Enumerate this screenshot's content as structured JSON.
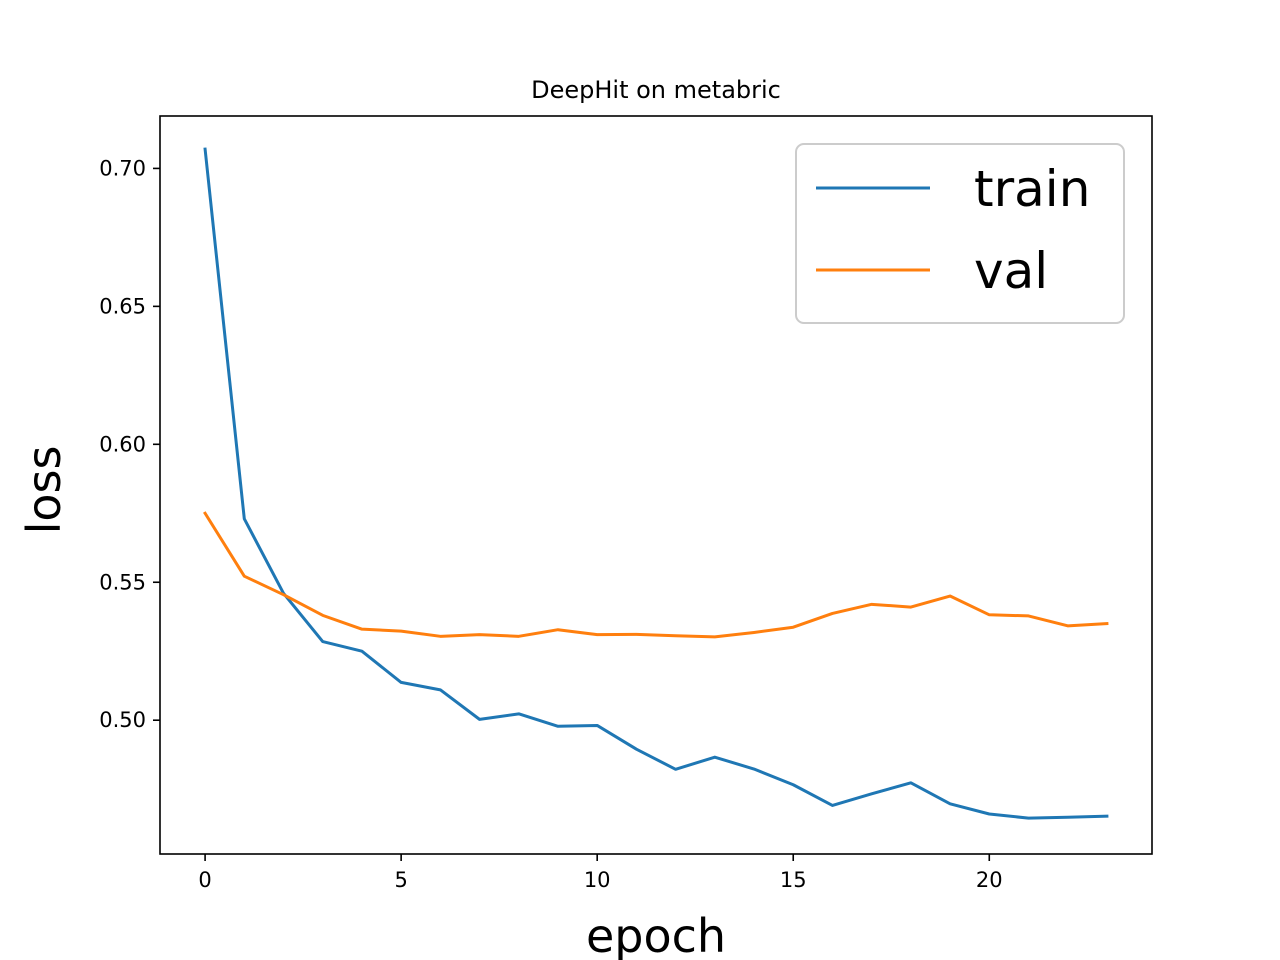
{
  "chart_data": {
    "type": "line",
    "title": "DeepHit on metabric",
    "xlabel": "epoch",
    "ylabel": "loss",
    "xlim": [
      -1.15,
      24.15
    ],
    "ylim": [
      0.4515,
      0.719
    ],
    "xticks": [
      0,
      5,
      10,
      15,
      20
    ],
    "xtick_labels": [
      "0",
      "5",
      "10",
      "15",
      "20"
    ],
    "yticks": [
      0.5,
      0.55,
      0.6,
      0.65,
      0.7
    ],
    "ytick_labels": [
      "0.50",
      "0.55",
      "0.60",
      "0.65",
      "0.70"
    ],
    "grid": false,
    "legend_position": "top-right",
    "x": [
      0,
      1,
      2,
      3,
      4,
      5,
      6,
      7,
      8,
      9,
      10,
      11,
      12,
      13,
      14,
      15,
      16,
      17,
      18,
      19,
      20,
      21,
      22,
      23
    ],
    "series": [
      {
        "name": "train",
        "color": "#1f77b4",
        "values": [
          0.707,
          0.573,
          0.546,
          0.5285,
          0.525,
          0.5137,
          0.511,
          0.5003,
          0.5023,
          0.4978,
          0.4981,
          0.4895,
          0.4822,
          0.4866,
          0.4823,
          0.4766,
          0.4691,
          0.4733,
          0.4773,
          0.4697,
          0.466,
          0.4645,
          0.4648,
          0.4652
        ]
      },
      {
        "name": "val",
        "color": "#ff7f0e",
        "values": [
          0.575,
          0.5522,
          0.5455,
          0.538,
          0.533,
          0.5323,
          0.5304,
          0.531,
          0.5304,
          0.5328,
          0.531,
          0.5311,
          0.5306,
          0.5302,
          0.5318,
          0.5337,
          0.5387,
          0.542,
          0.541,
          0.545,
          0.5382,
          0.5378,
          0.5342,
          0.535
        ]
      }
    ]
  }
}
